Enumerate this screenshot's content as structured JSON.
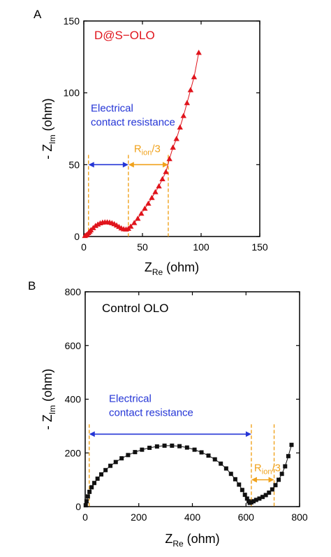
{
  "chart_data": [
    {
      "type": "scatter",
      "panel_label": "A",
      "title": "D@S−OLO",
      "xlabel": {
        "main": "Z",
        "sub": "Re",
        "unit": " (ohm)"
      },
      "ylabel": {
        "main": "- Z",
        "sub": "Im",
        "unit": " (ohm)"
      },
      "xlim": [
        0,
        150
      ],
      "ylim": [
        0,
        150
      ],
      "xticks": [
        0,
        50,
        100,
        150
      ],
      "yticks": [
        0,
        50,
        100,
        150
      ],
      "xtick_labels": [
        "0",
        "50",
        "100",
        "150"
      ],
      "ytick_labels": [
        "0",
        "50",
        "100",
        "150"
      ],
      "grid": false,
      "series": [
        {
          "color": "#e0141c",
          "marker": "triangle",
          "connected": true,
          "x": [
            1,
            2,
            3,
            4,
            5,
            6,
            8,
            10,
            12,
            14,
            16,
            18,
            20,
            22,
            24,
            26,
            28,
            30,
            32,
            34,
            36,
            38,
            40,
            43,
            46,
            49,
            52,
            55,
            58,
            61,
            64,
            67,
            70,
            73,
            76,
            79,
            82,
            85,
            88,
            91,
            94,
            98
          ],
          "y": [
            0.5,
            1,
            1.5,
            2.5,
            3.5,
            4.5,
            6,
            7.5,
            8.5,
            9.3,
            9.8,
            10,
            10,
            9.8,
            9.4,
            8.7,
            7.8,
            6.8,
            5.8,
            5.2,
            5,
            5.5,
            7,
            9.5,
            12.5,
            16,
            19.5,
            23,
            27,
            31,
            35,
            40,
            45,
            54,
            62,
            68,
            76,
            84,
            93,
            102,
            111,
            128
          ]
        }
      ],
      "annotations": {
        "segment1": {
          "x_from": 4,
          "x_to": 38,
          "y": 50,
          "line1": "Electrical",
          "line2": "contact resistance",
          "color": "#2435d6"
        },
        "segment2": {
          "x_from": 38,
          "x_to": 72,
          "y": 50,
          "label_main": "R",
          "label_sub": "ion",
          "label_suffix": "/3",
          "color": "#f0a21c"
        },
        "dashed_x": [
          4,
          38,
          72
        ]
      }
    },
    {
      "type": "scatter",
      "panel_label": "B",
      "title": "Control OLO",
      "xlabel": {
        "main": "Z",
        "sub": "Re",
        "unit": " (ohm)"
      },
      "ylabel": {
        "main": "- Z",
        "sub": "Im",
        "unit": " (ohm)"
      },
      "xlim": [
        0,
        800
      ],
      "ylim": [
        0,
        800
      ],
      "xticks": [
        0,
        200,
        400,
        600,
        800
      ],
      "yticks": [
        0,
        200,
        400,
        600,
        800
      ],
      "xtick_labels": [
        "0",
        "200",
        "400",
        "600",
        "800"
      ],
      "ytick_labels": [
        "0",
        "200",
        "400",
        "600",
        "800"
      ],
      "grid": false,
      "series": [
        {
          "color": "#111111",
          "marker": "square",
          "connected": true,
          "x": [
            2,
            5,
            10,
            16,
            24,
            34,
            46,
            60,
            76,
            94,
            114,
            136,
            160,
            186,
            212,
            240,
            268,
            296,
            324,
            352,
            380,
            408,
            434,
            460,
            484,
            506,
            526,
            544,
            560,
            574,
            586,
            596,
            604,
            610,
            614,
            620,
            628,
            638,
            650,
            662,
            674,
            686,
            698,
            710,
            722,
            734,
            746,
            758,
            770
          ],
          "y": [
            5,
            20,
            38,
            55,
            72,
            88,
            104,
            120,
            136,
            152,
            166,
            180,
            192,
            203,
            212,
            219,
            224,
            227,
            227,
            225,
            220,
            212,
            202,
            190,
            176,
            160,
            142,
            122,
            102,
            82,
            62,
            44,
            30,
            20,
            14,
            16,
            20,
            25,
            30,
            36,
            43,
            52,
            64,
            80,
            100,
            122,
            150,
            188,
            230
          ]
        }
      ],
      "annotations": {
        "segment1": {
          "x_from": 15,
          "x_to": 620,
          "y": 270,
          "line1": "Electrical",
          "line2": "contact resistance",
          "color": "#2435d6"
        },
        "segment2": {
          "x_from": 620,
          "x_to": 705,
          "y": 100,
          "label_main": "R",
          "label_sub": "ion",
          "label_suffix": "/3",
          "color": "#f0a21c"
        },
        "dashed_x": [
          15,
          620,
          705
        ]
      }
    }
  ]
}
